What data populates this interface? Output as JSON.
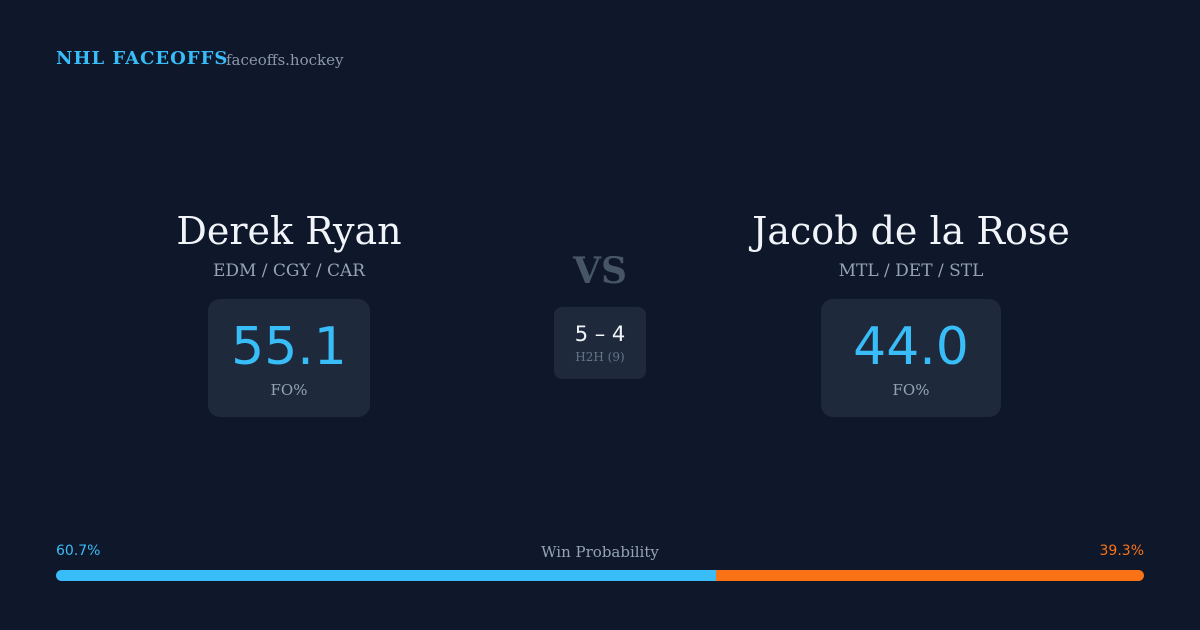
{
  "header": {
    "title": "NHL FACEOFFS",
    "site": "faceoffs.hockey"
  },
  "players": [
    {
      "name": "Derek Ryan",
      "teams": "EDM / CGY / CAR",
      "fo_pct": "55.1",
      "fo_label": "FO%"
    },
    {
      "name": "Jacob de la Rose",
      "teams": "MTL / DET / STL",
      "fo_pct": "44.0",
      "fo_label": "FO%"
    }
  ],
  "vs": "VS",
  "h2h": {
    "score": "5 – 4",
    "label": "H2H (9)"
  },
  "win_probability": {
    "label": "Win Probability",
    "values": [
      60.7,
      39.3
    ],
    "value_labels": [
      "60.7%",
      "39.3%"
    ],
    "colors": [
      "#38bdf8",
      "#f97316"
    ]
  }
}
